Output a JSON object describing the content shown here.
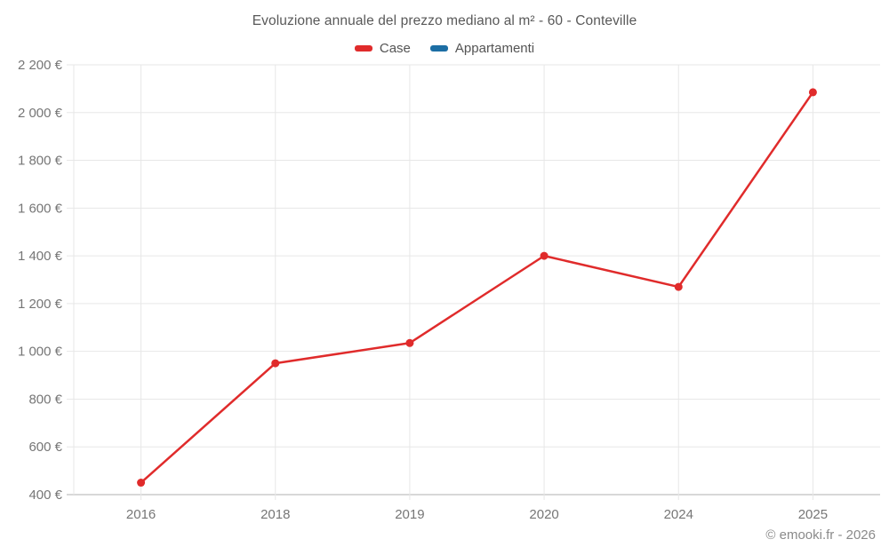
{
  "title": "Evoluzione annuale del prezzo mediano al m² - 60 - Conteville",
  "legend": {
    "items": [
      {
        "label": "Case",
        "color": "#e02b2b"
      },
      {
        "label": "Appartamenti",
        "color": "#1c6ea4"
      }
    ]
  },
  "footer": {
    "credit": "© emooki.fr - 2026"
  },
  "colors": {
    "grid": "#e7e7e7",
    "axis": "#b0b0b0",
    "tick_label": "#767676",
    "title_text": "#595959",
    "case_red": "#e02b2b",
    "appartamenti_blue": "#1c6ea4"
  },
  "chart_data": {
    "type": "line",
    "title": "Evoluzione annuale del prezzo mediano al m² - 60 - Conteville",
    "categories": [
      "2016",
      "2018",
      "2019",
      "2020",
      "2024",
      "2025"
    ],
    "series": [
      {
        "name": "Case",
        "color": "#e02b2b",
        "values": [
          450,
          950,
          1035,
          1400,
          1270,
          2085
        ]
      },
      {
        "name": "Appartamenti",
        "color": "#1c6ea4",
        "values": []
      }
    ],
    "xlabel": "",
    "ylabel": "",
    "ylim": [
      400,
      2200
    ],
    "ytick_step": 200,
    "yticks": [
      400,
      600,
      800,
      1000,
      1200,
      1400,
      1600,
      1800,
      2000,
      2200
    ],
    "ytick_suffix": " €",
    "grid": true,
    "legend_position": "top",
    "point_style": "circle"
  }
}
